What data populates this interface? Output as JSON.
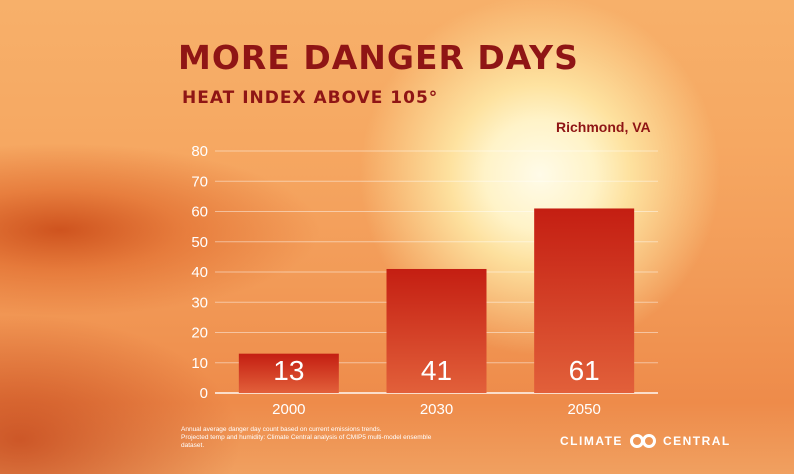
{
  "title": "MORE DANGER DAYS",
  "subtitle": "HEAT INDEX ABOVE 105°",
  "location": "Richmond, VA",
  "footnote": [
    "Annual average danger day count based on current emissions trends.",
    "Projected temp and humidity: Climate Central analysis of CMIP5 multi-model ensemble",
    "dataset."
  ],
  "logo": {
    "left": "CLIMATE",
    "right": "CENTRAL"
  },
  "colors": {
    "title": "#8f1515",
    "bar_top": "#c41e12",
    "bar_bottom": "#e2603a"
  },
  "chart_data": {
    "type": "bar",
    "categories": [
      "2000",
      "2030",
      "2050"
    ],
    "values": [
      13,
      41,
      61
    ],
    "data_labels": [
      "13",
      "41",
      "61"
    ],
    "yticks": [
      "0",
      "10",
      "20",
      "30",
      "40",
      "50",
      "60",
      "70",
      "80"
    ],
    "ylim": [
      0,
      80
    ],
    "grid": true
  }
}
